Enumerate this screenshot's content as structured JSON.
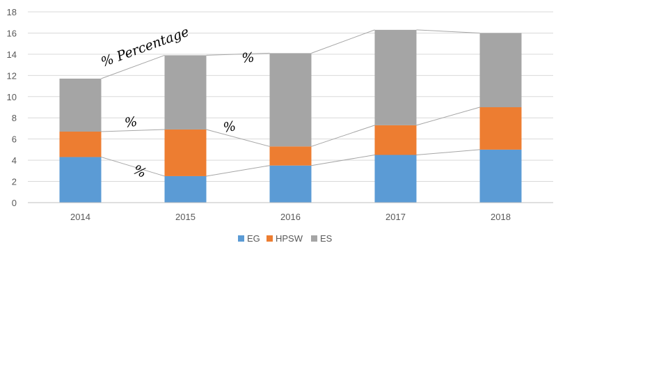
{
  "chart_data": {
    "type": "bar",
    "stacked": true,
    "categories": [
      "2014",
      "2015",
      "2016",
      "2017",
      "2018"
    ],
    "series": [
      {
        "name": "EG",
        "color": "#5b9bd5",
        "values": [
          4.3,
          2.5,
          3.5,
          4.5,
          5.0
        ]
      },
      {
        "name": "HPSW",
        "color": "#ed7d31",
        "values": [
          2.4,
          4.4,
          1.8,
          2.8,
          4.0
        ]
      },
      {
        "name": "ES",
        "color": "#a5a5a5",
        "values": [
          5.0,
          7.0,
          8.8,
          9.0,
          7.0
        ]
      }
    ],
    "ylim": [
      0,
      18
    ],
    "yticks": [
      0,
      2,
      4,
      6,
      8,
      10,
      12,
      14,
      16,
      18
    ],
    "grid": true,
    "legend": "bottom",
    "series_lines": true,
    "annotations": [
      "% Percentage",
      "%",
      "%",
      "%",
      "%"
    ]
  }
}
